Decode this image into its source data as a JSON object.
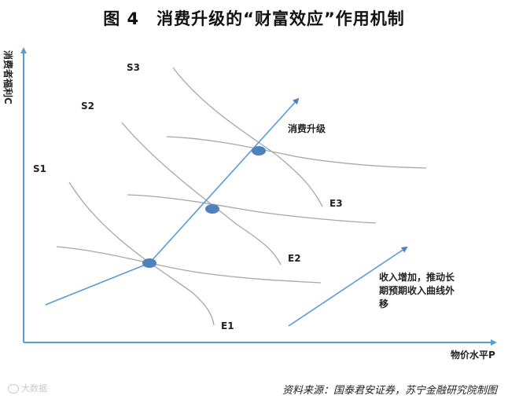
{
  "title": "图 4　消费升级的“财富效应”作用机制",
  "y_axis_label": "消费者福利C",
  "x_axis_label": "物价水平P",
  "supply_curves": [
    "S1",
    "S2",
    "S3"
  ],
  "equilibrium_curves": [
    "E1",
    "E2",
    "E3"
  ],
  "upgrade_label": "消费升级",
  "income_note": [
    "收入增加，推动长",
    "期预期收入曲线外",
    "移"
  ],
  "source": "资料来源：国泰君安证券，苏宁金融研究院制图",
  "watermark": "大数据",
  "colors": {
    "axis": "#5b9bd5",
    "arrow": "#4f81bd",
    "curve": "#a6a6a6",
    "point": "#4f81bd"
  }
}
